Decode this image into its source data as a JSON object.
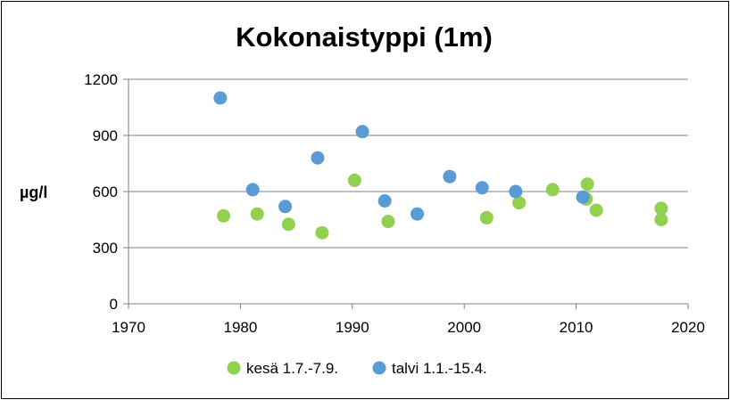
{
  "chart_data": {
    "type": "scatter",
    "title": "Kokonaistyppi (1m)",
    "xlabel": "",
    "ylabel": "µg/l",
    "xlim": [
      1970,
      2020
    ],
    "ylim": [
      0,
      1200
    ],
    "xticks": [
      "1970",
      "1980",
      "1990",
      "2000",
      "2010",
      "2020"
    ],
    "yticks": [
      "0",
      "300",
      "600",
      "900",
      "1200"
    ],
    "grid": "horizontal",
    "legend_position": "bottom",
    "series": [
      {
        "name": "kesä 1.7.-7.9.",
        "color": "#92D050",
        "points": [
          [
            1978.5,
            470
          ],
          [
            1981.5,
            480
          ],
          [
            1984.3,
            425
          ],
          [
            1987.3,
            380
          ],
          [
            1990.2,
            660
          ],
          [
            1993.2,
            440
          ],
          [
            2002.0,
            460
          ],
          [
            2004.9,
            540
          ],
          [
            2007.9,
            610
          ],
          [
            2010.9,
            560
          ],
          [
            2011.0,
            640
          ],
          [
            2011.8,
            500
          ],
          [
            2017.6,
            510
          ],
          [
            2017.6,
            450
          ]
        ]
      },
      {
        "name": "talvi 1.1.-15.4.",
        "color": "#5B9BD5",
        "points": [
          [
            1978.2,
            1100
          ],
          [
            1981.1,
            610
          ],
          [
            1984.0,
            520
          ],
          [
            1986.9,
            780
          ],
          [
            1990.9,
            920
          ],
          [
            1992.9,
            550
          ],
          [
            1995.8,
            480
          ],
          [
            1998.7,
            680
          ],
          [
            2001.6,
            620
          ],
          [
            2004.6,
            600
          ],
          [
            2010.6,
            570
          ]
        ]
      }
    ]
  }
}
